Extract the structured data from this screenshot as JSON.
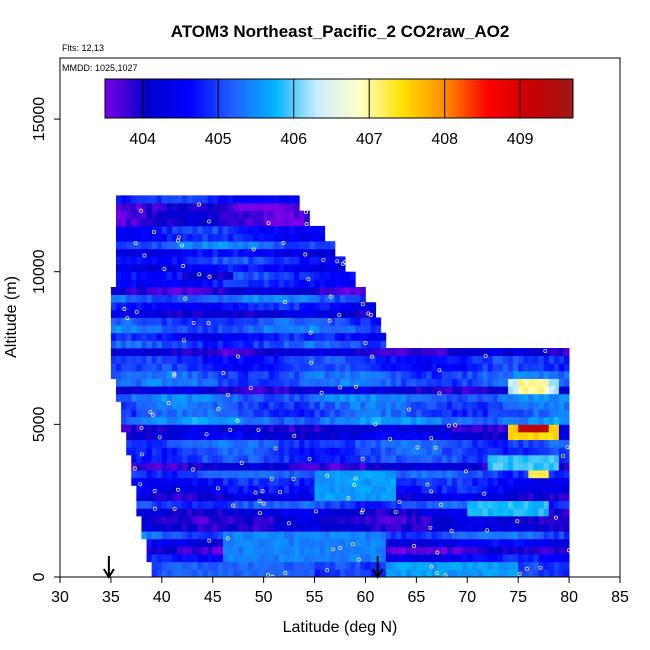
{
  "chart_data": {
    "type": "heatmap",
    "title": "ATOM3 Northeast_Pacific_2 CO2raw_AO2",
    "flights_label": "Flts: 12,13",
    "dates_label": "MMDD: 1025,1027",
    "xlabel": "Latitude (deg N)",
    "ylabel": "Altitude (m)",
    "xlim": [
      30,
      85
    ],
    "ylim": [
      0,
      17000
    ],
    "xticks": [
      "30",
      "35",
      "40",
      "45",
      "50",
      "55",
      "60",
      "65",
      "70",
      "75",
      "80",
      "85"
    ],
    "yticks": [
      "0",
      "5000",
      "10000",
      "15000"
    ],
    "colorbar": {
      "range": [
        403.5,
        409.7
      ],
      "ticks": [
        "404",
        "405",
        "406",
        "407",
        "408",
        "409"
      ],
      "colors": [
        "#7a00e6",
        "#0000c8",
        "#0000ff",
        "#2060ff",
        "#00b4ff",
        "#cdeeff",
        "#ffffc8",
        "#ffe000",
        "#ff8c00",
        "#ff0000",
        "#c80000",
        "#a01818"
      ]
    },
    "arrows_latitude": [
      34.8,
      61.2
    ],
    "extent": {
      "lat_min": 35,
      "lat_max": 80,
      "alt_max": 12500,
      "edge_top": [
        [
          35.5,
          12500
        ],
        [
          53.5,
          12500
        ],
        [
          54.5,
          12000
        ],
        [
          56,
          11500
        ],
        [
          57,
          11000
        ],
        [
          58,
          10500
        ],
        [
          59,
          10000
        ],
        [
          60,
          9500
        ],
        [
          61,
          9000
        ],
        [
          61.5,
          8500
        ],
        [
          62,
          8000
        ],
        [
          63,
          7500
        ],
        [
          80,
          7500
        ]
      ],
      "edge_left": [
        [
          35.5,
          12500
        ],
        [
          35.5,
          9500
        ],
        [
          35.0,
          9500
        ],
        [
          35.0,
          6500
        ],
        [
          35.5,
          6500
        ],
        [
          36.0,
          5000
        ],
        [
          36.5,
          4500
        ],
        [
          37.0,
          3500
        ],
        [
          37.5,
          2500
        ],
        [
          38.0,
          1500
        ],
        [
          38.5,
          1000
        ],
        [
          39.0,
          0
        ]
      ]
    },
    "background_value": 404.5,
    "features": [
      {
        "lat": [
          74,
          79
        ],
        "alt": [
          4500,
          5000
        ],
        "value": 407.5
      },
      {
        "lat": [
          75,
          78
        ],
        "alt": [
          4650,
          4900
        ],
        "value": 409.2
      },
      {
        "lat": [
          76,
          78
        ],
        "alt": [
          3200,
          3600
        ],
        "value": 407.3
      },
      {
        "lat": [
          70,
          78
        ],
        "alt": [
          2000,
          2500
        ],
        "value": 405.8
      },
      {
        "lat": [
          72,
          79
        ],
        "alt": [
          3500,
          4000
        ],
        "value": 405.9
      },
      {
        "lat": [
          74,
          79
        ],
        "alt": [
          6000,
          6500
        ],
        "value": 406.2
      },
      {
        "lat": [
          75,
          78
        ],
        "alt": [
          6100,
          6400
        ],
        "value": 407.0
      },
      {
        "lat": [
          55,
          63
        ],
        "alt": [
          2500,
          3500
        ],
        "value": 405.6
      },
      {
        "lat": [
          46,
          62
        ],
        "alt": [
          500,
          1500
        ],
        "value": 405.4
      },
      {
        "lat": [
          40,
          55
        ],
        "alt": [
          0,
          500
        ],
        "value": 405.2
      },
      {
        "lat": [
          62,
          75
        ],
        "alt": [
          0,
          500
        ],
        "value": 405.6
      },
      {
        "lat": [
          42,
          47
        ],
        "alt": [
          9800,
          10000
        ],
        "value": 404.0
      },
      {
        "lat": [
          47,
          52
        ],
        "alt": [
          8500,
          8800
        ],
        "value": 404.0
      },
      {
        "lat": [
          49,
          51
        ],
        "alt": [
          1500,
          2000
        ],
        "value": 403.8
      }
    ]
  }
}
